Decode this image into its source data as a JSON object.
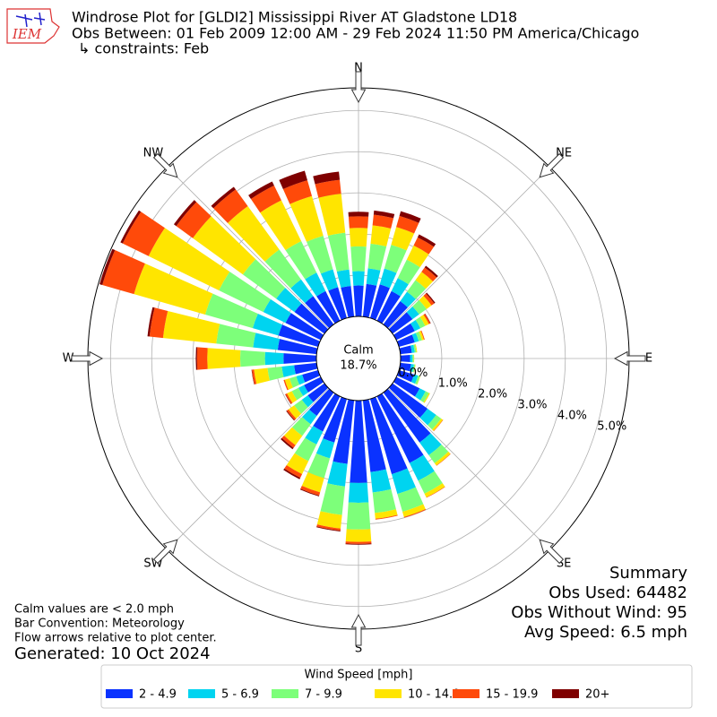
{
  "logo_text": "IEM",
  "chart_data": {
    "type": "windrose",
    "title": "Windrose Plot for [GLDI2] Mississippi River  AT Gladstone LD18",
    "subtitle": "Obs Between: 01 Feb 2009 12:00 AM - 29 Feb 2024 11:50 PM America/Chicago",
    "subtitle2": "↳ constraints: Feb",
    "compass_labels": [
      "N",
      "NE",
      "E",
      "SE",
      "S",
      "SW",
      "W",
      "NW"
    ],
    "x": [
      0,
      10,
      20,
      30,
      40,
      50,
      60,
      70,
      80,
      90,
      100,
      110,
      120,
      130,
      140,
      150,
      160,
      170,
      180,
      190,
      200,
      210,
      220,
      230,
      240,
      250,
      260,
      270,
      280,
      290,
      300,
      310,
      320,
      330,
      340,
      350
    ],
    "calm_label": "Calm",
    "calm_value": {
      "value": 18.7,
      "label": "18.7%"
    },
    "rlim": [
      0,
      5.55
    ],
    "rticks": [
      {
        "value": 0,
        "label": "0.0%"
      },
      {
        "value": 1,
        "label": "1.0%"
      },
      {
        "value": 2,
        "label": "2.0%"
      },
      {
        "value": 3,
        "label": "3.0%"
      },
      {
        "value": 4,
        "label": "4.0%"
      },
      {
        "value": 5,
        "label": "5.0%"
      }
    ],
    "grid": true,
    "legend_title": "Wind Speed [mph]",
    "legend_position": "bottom",
    "series": [
      {
        "name": "2 - 4.9",
        "color": "#0a32ff",
        "values": [
          0.75,
          0.8,
          0.85,
          0.8,
          0.7,
          0.6,
          0.5,
          0.4,
          0.28,
          0.23,
          0.26,
          0.38,
          0.63,
          1.05,
          1.5,
          1.8,
          1.9,
          1.75,
          2.0,
          1.55,
          1.1,
          0.95,
          0.7,
          0.5,
          0.45,
          0.4,
          0.55,
          0.8,
          0.95,
          1.0,
          0.95,
          0.9,
          0.85,
          0.8,
          0.78,
          0.75
        ]
      },
      {
        "name": "5 - 6.9",
        "color": "#00d4f0",
        "values": [
          0.35,
          0.38,
          0.4,
          0.35,
          0.28,
          0.2,
          0.15,
          0.1,
          0.07,
          0.06,
          0.07,
          0.1,
          0.16,
          0.26,
          0.38,
          0.48,
          0.5,
          0.5,
          0.48,
          0.55,
          0.4,
          0.35,
          0.25,
          0.18,
          0.15,
          0.15,
          0.3,
          0.45,
          0.6,
          0.65,
          0.6,
          0.55,
          0.5,
          0.5,
          0.45,
          0.4
        ]
      },
      {
        "name": "7 - 9.9",
        "color": "#7dff7a",
        "values": [
          0.6,
          0.6,
          0.6,
          0.5,
          0.35,
          0.22,
          0.13,
          0.08,
          0.04,
          0.03,
          0.03,
          0.05,
          0.09,
          0.15,
          0.24,
          0.35,
          0.45,
          0.5,
          0.65,
          0.7,
          0.5,
          0.45,
          0.35,
          0.23,
          0.18,
          0.17,
          0.35,
          0.6,
          0.9,
          1.2,
          1.2,
          1.0,
          0.9,
          0.85,
          0.85,
          0.9
        ]
      },
      {
        "name": "10 - 14.9",
        "color": "#ffe500",
        "values": [
          0.45,
          0.45,
          0.45,
          0.38,
          0.25,
          0.15,
          0.1,
          0.05,
          0.02,
          0.01,
          0.01,
          0.01,
          0.03,
          0.05,
          0.07,
          0.1,
          0.13,
          0.14,
          0.3,
          0.33,
          0.36,
          0.35,
          0.28,
          0.17,
          0.13,
          0.12,
          0.33,
          0.8,
          1.3,
          1.8,
          1.9,
          1.5,
          1.3,
          1.1,
          1.0,
          0.95
        ]
      },
      {
        "name": "15 - 19.9",
        "color": "#ff4a0a",
        "values": [
          0.28,
          0.26,
          0.28,
          0.22,
          0.13,
          0.08,
          0.04,
          0.02,
          0,
          0,
          0,
          0,
          0,
          0.01,
          0.01,
          0.01,
          0.02,
          0.02,
          0.05,
          0.05,
          0.08,
          0.1,
          0.08,
          0.05,
          0.04,
          0.03,
          0.05,
          0.25,
          0.33,
          0.8,
          0.7,
          0.5,
          0.5,
          0.4,
          0.4,
          0.34
        ]
      },
      {
        "name": "20+",
        "color": "#7f0000",
        "values": [
          0.11,
          0.1,
          0.12,
          0.08,
          0.05,
          0.03,
          0.01,
          0,
          0,
          0,
          0,
          0,
          0,
          0,
          0,
          0,
          0,
          0,
          0.02,
          0.02,
          0.02,
          0.04,
          0.04,
          0.02,
          0.01,
          0,
          0.01,
          0.03,
          0.05,
          0.07,
          0.06,
          0.07,
          0.08,
          0.11,
          0.24,
          0.2
        ]
      }
    ],
    "summary": [
      "Summary",
      "Obs Used: 64482",
      "Obs Without Wind: 95",
      "Avg Speed: 6.5 mph"
    ],
    "notes": [
      "Calm values are < 2.0 mph",
      "Bar Convention: Meteorology",
      "Flow arrows relative to plot center."
    ],
    "generated": "Generated: 10 Oct 2024"
  }
}
